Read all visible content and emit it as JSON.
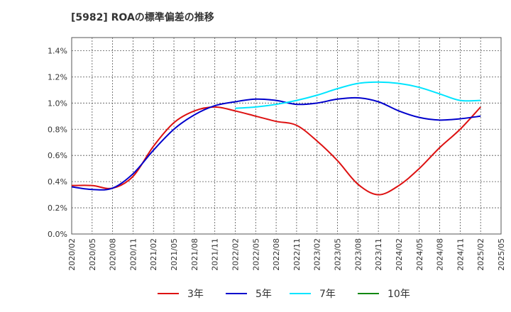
{
  "chart_data": {
    "type": "line",
    "title": "[5982]  ROAの標準偏差の推移",
    "xlabel": "",
    "ylabel": "",
    "x": [
      "2020/02",
      "2020/05",
      "2020/08",
      "2020/11",
      "2021/02",
      "2021/05",
      "2021/08",
      "2021/11",
      "2022/02",
      "2022/05",
      "2022/08",
      "2022/11",
      "2023/02",
      "2023/05",
      "2023/08",
      "2023/11",
      "2024/02",
      "2024/05",
      "2024/08",
      "2024/11",
      "2025/02"
    ],
    "x_ticks": [
      "2020/02",
      "2020/05",
      "2020/08",
      "2020/11",
      "2021/02",
      "2021/05",
      "2021/08",
      "2021/11",
      "2022/02",
      "2022/05",
      "2022/08",
      "2022/11",
      "2023/02",
      "2023/05",
      "2023/08",
      "2023/11",
      "2024/02",
      "2024/05",
      "2024/08",
      "2024/11",
      "2025/02",
      "2025/05"
    ],
    "y_ticks": [
      "0.0%",
      "0.2%",
      "0.4%",
      "0.6%",
      "0.8%",
      "1.0%",
      "1.2%",
      "1.4%"
    ],
    "ylim": [
      0,
      1.5
    ],
    "y_unit": "%",
    "grid": true,
    "legend_position": "bottom",
    "series": [
      {
        "name": "3年",
        "color": "#dd1111",
        "values": [
          0.37,
          0.37,
          0.35,
          0.44,
          0.67,
          0.85,
          0.94,
          0.97,
          0.94,
          0.9,
          0.86,
          0.83,
          0.71,
          0.56,
          0.38,
          0.3,
          0.37,
          0.5,
          0.66,
          0.8,
          0.97
        ]
      },
      {
        "name": "5年",
        "color": "#0000cc",
        "values": [
          0.36,
          0.34,
          0.35,
          0.46,
          0.64,
          0.8,
          0.91,
          0.98,
          1.01,
          1.03,
          1.02,
          0.99,
          1.0,
          1.03,
          1.04,
          1.01,
          0.94,
          0.89,
          0.87,
          0.88,
          0.9
        ]
      },
      {
        "name": "7年",
        "color": "#00e5ff",
        "values": [
          null,
          null,
          null,
          null,
          null,
          null,
          null,
          null,
          0.96,
          0.97,
          0.99,
          1.02,
          1.06,
          1.11,
          1.15,
          1.16,
          1.15,
          1.12,
          1.07,
          1.02,
          1.02
        ]
      },
      {
        "name": "10年",
        "color": "#118811",
        "values": [
          null,
          null,
          null,
          null,
          null,
          null,
          null,
          null,
          null,
          null,
          null,
          null,
          null,
          null,
          null,
          null,
          null,
          null,
          null,
          null,
          null
        ]
      }
    ]
  }
}
